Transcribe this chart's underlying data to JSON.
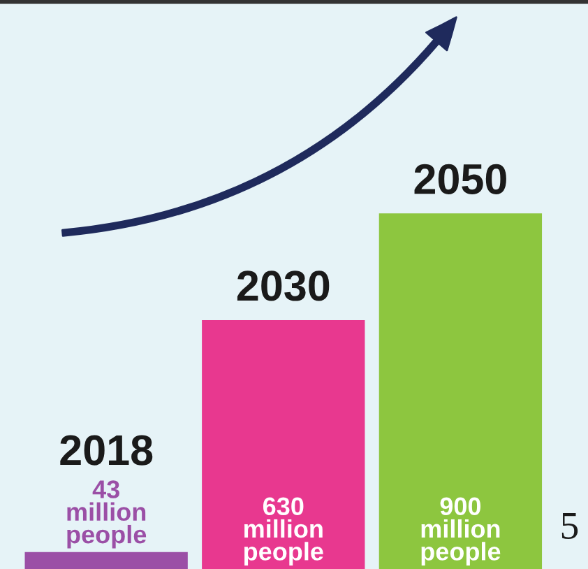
{
  "chart_data": {
    "type": "bar",
    "categories": [
      "2018",
      "2030",
      "2050"
    ],
    "values": [
      43000000,
      630000000,
      900000000
    ],
    "colors": [
      "#9b4fa6",
      "#e8388f",
      "#8dc63f"
    ],
    "value_labels": [
      "43\nmillion\npeople",
      "630\nmillion\npeople",
      "900\nmillion\npeople"
    ],
    "annotations": [
      "5"
    ]
  }
}
